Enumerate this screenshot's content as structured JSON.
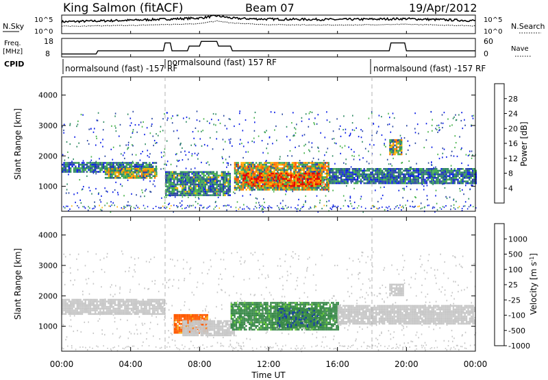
{
  "header": {
    "station": "King Salmon (fitACF)",
    "beam": "Beam 07",
    "date": "19/Apr/2012"
  },
  "sky_panel": {
    "left_label": "N.Sky",
    "right_label": "N.Search",
    "tick_top": "10^5",
    "tick_bottom": "10^0"
  },
  "freq_panel": {
    "left_label_1": "Freq.",
    "left_label_2": "[MHz]",
    "left_ticks": [
      "18",
      "8"
    ],
    "right_label": "Nave",
    "right_ticks": [
      "60",
      "0"
    ]
  },
  "cpid": {
    "label": "CPID",
    "segments": [
      {
        "text": "normalsound (fast) -157 RF",
        "start_hour": 0
      },
      {
        "text": "normalsound (fast) 157 RF",
        "start_hour": 6
      },
      {
        "text": "normalsound (fast) -157 RF",
        "start_hour": 18
      }
    ]
  },
  "time_axis": {
    "label": "Time UT",
    "ticks": [
      "00:00",
      "04:00",
      "08:00",
      "12:00",
      "16:00",
      "20:00",
      "00:00"
    ],
    "tick_hours": [
      0,
      4,
      8,
      12,
      16,
      20,
      24
    ],
    "dashed_markers_hours": [
      6,
      18
    ]
  },
  "power_panel": {
    "ylabel": "Slant Range [km]",
    "yticks": [
      "1000",
      "2000",
      "3000",
      "4000"
    ],
    "colorbar_label": "Power [dB]",
    "colorbar_ticks": [
      "4",
      "8",
      "12",
      "16",
      "20",
      "24",
      "28"
    ]
  },
  "velocity_panel": {
    "ylabel": "Slant Range [km]",
    "yticks": [
      "1000",
      "2000",
      "3000",
      "4000"
    ],
    "colorbar_label": "Velocity [m s",
    "colorbar_label_sup": "-1",
    "colorbar_label_end": "]",
    "colorbar_ticks": [
      "1000",
      "500",
      "100",
      "25",
      "-25",
      "-100",
      "-500",
      "-1000"
    ]
  },
  "chart_data": [
    {
      "type": "line",
      "title": "King Salmon (fitACF)",
      "xlabel": "Time UT",
      "series": [
        {
          "name": "N.Sky",
          "x": [
            0,
            4,
            8,
            9,
            10,
            12,
            16,
            20,
            24
          ],
          "values": [
            3.2,
            3.6,
            4.2,
            4.8,
            4.1,
            3.9,
            3.8,
            4.0,
            3.5
          ]
        },
        {
          "name": "N.Search",
          "x": [
            0,
            4,
            8,
            9,
            10,
            12,
            16,
            20,
            24
          ],
          "values": [
            2.0,
            2.2,
            2.7,
            3.4,
            2.8,
            2.4,
            2.3,
            2.5,
            2.1
          ]
        }
      ],
      "ylim": [
        0,
        5
      ]
    },
    {
      "type": "line",
      "xlabel": "Time UT",
      "series": [
        {
          "name": "Freq.",
          "x": [
            0,
            2,
            2.1,
            5.9,
            6,
            6.3,
            6.4,
            7.3,
            7.4,
            8.0,
            8.1,
            9.0,
            9.1,
            9.8,
            9.9,
            19.0,
            19.1,
            19.9,
            20.0,
            24
          ],
          "values": [
            9,
            9,
            11,
            11,
            16,
            16,
            11,
            11,
            14,
            14,
            17,
            17,
            14,
            14,
            11,
            11,
            16,
            16,
            11,
            11
          ]
        }
      ],
      "ylim": [
        8,
        18
      ]
    },
    {
      "type": "heatmap",
      "title": "Power [dB]",
      "xlabel": "Time UT",
      "ylabel": "Slant Range [km]",
      "xlim": [
        0,
        24
      ],
      "ylim": [
        180,
        4600
      ],
      "zlim": [
        0,
        30
      ],
      "colorbar_ticks": [
        4,
        8,
        12,
        16,
        20,
        24,
        28
      ],
      "bands": [
        {
          "t0": 0,
          "t1": 5.5,
          "r0": 1500,
          "r1": 1800,
          "z": 8
        },
        {
          "t0": 2.5,
          "t1": 5.5,
          "r0": 1300,
          "r1": 1600,
          "z": 14
        },
        {
          "t0": 6,
          "t1": 9.8,
          "r0": 700,
          "r1": 1500,
          "z": 10
        },
        {
          "t0": 10,
          "t1": 15.5,
          "r0": 900,
          "r1": 1800,
          "z": 16
        },
        {
          "t0": 10.5,
          "t1": 15,
          "r0": 1000,
          "r1": 1450,
          "z": 24
        },
        {
          "t0": 15.5,
          "t1": 24,
          "r0": 1100,
          "r1": 1600,
          "z": 8
        },
        {
          "t0": 19,
          "t1": 19.7,
          "r0": 2050,
          "r1": 2550,
          "z": 14
        }
      ]
    },
    {
      "type": "heatmap",
      "title": "Velocity",
      "xlabel": "Time UT",
      "ylabel": "Slant Range [km]",
      "xlim": [
        0,
        24
      ],
      "ylim": [
        180,
        4600
      ],
      "zlim": [
        -1000,
        1000
      ],
      "colorbar_ticks": [
        1000,
        500,
        100,
        25,
        -25,
        -100,
        -500,
        -1000
      ],
      "bands": [
        {
          "t0": 0,
          "t1": 6,
          "r0": 1400,
          "r1": 1900,
          "z": 0
        },
        {
          "t0": 6.5,
          "t1": 8.5,
          "r0": 800,
          "r1": 1400,
          "z": -150
        },
        {
          "t0": 7,
          "t1": 10,
          "r0": 700,
          "r1": 1200,
          "z": 0
        },
        {
          "t0": 9.8,
          "t1": 16,
          "r0": 900,
          "r1": 1800,
          "z": 150
        },
        {
          "t0": 12.5,
          "t1": 15,
          "r0": 1000,
          "r1": 1600,
          "z": 400
        },
        {
          "t0": 16,
          "t1": 24,
          "r0": 1100,
          "r1": 1700,
          "z": 0
        },
        {
          "t0": 19,
          "t1": 19.8,
          "r0": 2000,
          "r1": 2400,
          "z": 0
        }
      ]
    }
  ],
  "colors": {
    "power_scale": [
      "#0a1ee6",
      "#2846a0",
      "#2e8a62",
      "#46b24a",
      "#ffb400",
      "#ff7a00",
      "#ff4d00",
      "#e60000"
    ],
    "velocity_scale": [
      "#e60000",
      "#ff5a00",
      "#f5a81c",
      "#c8c8c8",
      "#c8c8c8",
      "#66cc33",
      "#3a8a4a",
      "#1a3ca8"
    ]
  }
}
